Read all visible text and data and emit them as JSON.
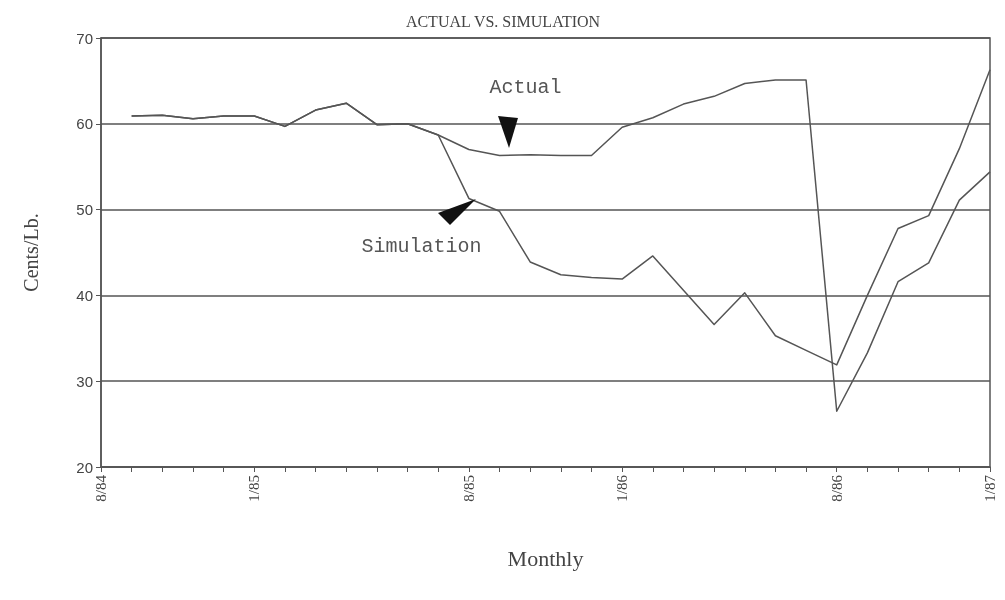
{
  "chart_data": {
    "type": "line",
    "title": "ACTUAL VS. SIMULATION",
    "xlabel": "Monthly",
    "ylabel": "Cents/Lb.",
    "categories": [
      "8/84",
      null,
      null,
      null,
      null,
      "1/85",
      null,
      null,
      null,
      null,
      null,
      null,
      "8/85",
      null,
      null,
      null,
      null,
      "1/86",
      null,
      null,
      null,
      null,
      null,
      null,
      "8/86",
      null,
      null,
      null,
      null,
      "1/87"
    ],
    "series": [
      {
        "name": "Actual",
        "color": "#555555",
        "values": [
          null,
          60.9,
          61.0,
          60.6,
          60.9,
          60.9,
          59.7,
          61.6,
          62.4,
          59.9,
          60.0,
          58.7,
          57.0,
          56.3,
          56.4,
          56.3,
          56.3,
          59.6,
          60.7,
          62.3,
          63.2,
          64.7,
          65.1,
          65.1,
          26.5,
          33.3,
          41.6,
          43.8,
          51.1,
          54.4
        ]
      },
      {
        "name": "Simulation",
        "color": "#555555",
        "values": [
          null,
          60.9,
          61.0,
          60.6,
          60.9,
          60.9,
          59.7,
          61.6,
          62.4,
          59.9,
          60.0,
          58.7,
          51.3,
          49.8,
          43.9,
          42.4,
          42.1,
          41.9,
          44.6,
          40.6,
          36.6,
          40.3,
          35.3,
          33.6,
          31.9,
          40.0,
          47.8,
          49.3,
          57.1,
          66.3
        ]
      }
    ],
    "ylim": [
      20,
      70
    ],
    "yticks": [
      20,
      30,
      40,
      50,
      60,
      70
    ],
    "grid": "y",
    "legend": false,
    "marker": "none",
    "line_style": "solid"
  }
}
